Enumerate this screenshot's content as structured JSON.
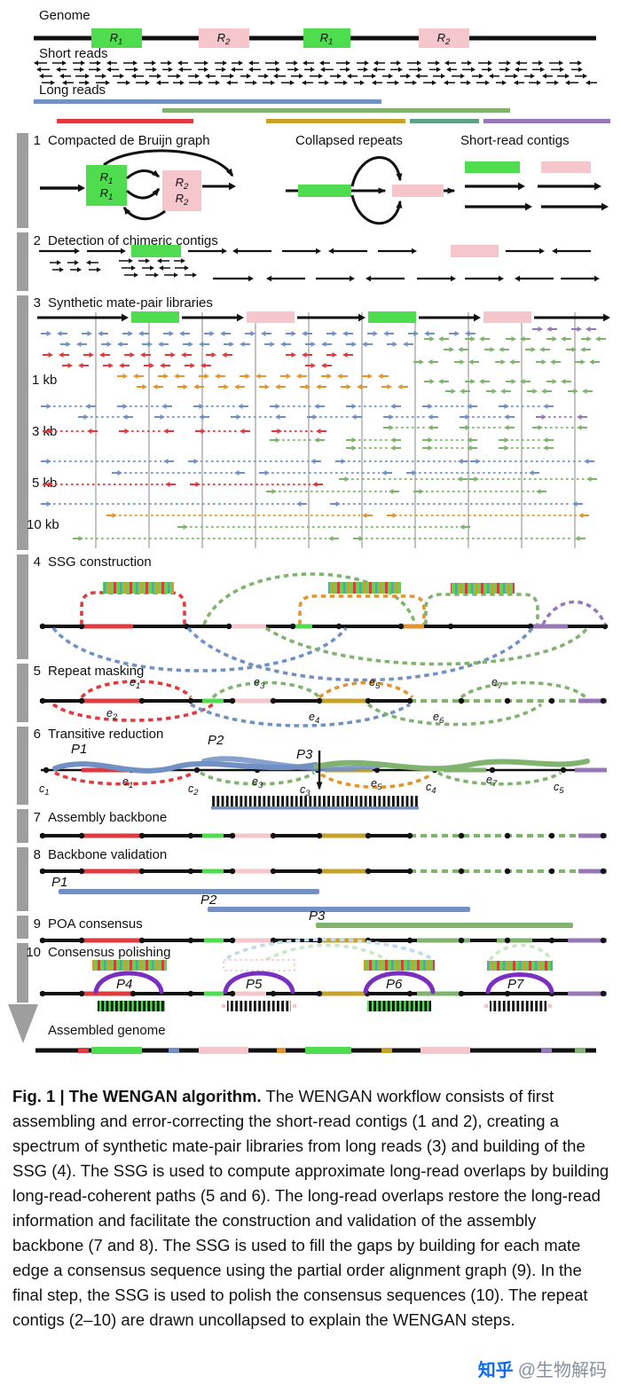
{
  "colors": {
    "repeat_green": "#4FDD4F",
    "repeat_pink": "#F5C6CB",
    "read_blue": "#7191C5",
    "read_red": "#E0393E",
    "read_orange": "#E2952F",
    "read_olive": "#C7A22A",
    "read_green": "#7FB36E",
    "read_purple": "#9678B6",
    "consensus_purple": "#7B2FC0",
    "step_bar_gray": "#9E9E9E",
    "zhihu_blue": "#0A6CF5"
  },
  "header": {
    "genome": "Genome",
    "short_reads": "Short reads",
    "long_reads": "Long reads",
    "r_base": "R",
    "r1_sub": "1",
    "r2_sub": "2"
  },
  "steps": {
    "s1": {
      "num": "1",
      "title_a": "Compacted de Bruijn graph",
      "title_b": "Collapsed repeats",
      "title_c": "Short-read contigs"
    },
    "s2": {
      "num": "2",
      "title": "Detection of chimeric contigs"
    },
    "s3": {
      "num": "3",
      "title": "Synthetic mate-pair libraries",
      "lib1": "1 kb",
      "lib2": "3 kb",
      "lib3": "5 kb",
      "lib4": "10 kb"
    },
    "s4": {
      "num": "4",
      "title": "SSG construction"
    },
    "s5": {
      "num": "5",
      "title": "Repeat masking",
      "e_base": "e",
      "e_subs": [
        "1",
        "2",
        "3",
        "4",
        "5",
        "6",
        "7"
      ]
    },
    "s6": {
      "num": "6",
      "title": "Transitive reduction",
      "p1": "P1",
      "p2": "P2",
      "p3": "P3",
      "c_base": "c",
      "c_subs": [
        "1",
        "2",
        "3",
        "4",
        "5"
      ],
      "e_base": "e",
      "e_subs": [
        "1",
        "3",
        "5",
        "7"
      ]
    },
    "s7": {
      "num": "7",
      "title": "Assembly backbone"
    },
    "s8": {
      "num": "8",
      "title": "Backbone validation",
      "p1": "P1",
      "p2": "P2",
      "p3": "P3"
    },
    "s9": {
      "num": "9",
      "title": "POA consensus"
    },
    "s10": {
      "num": "10",
      "title": "Consensus polishing",
      "p4": "P4",
      "p5": "P5",
      "p6": "P6",
      "p7": "P7"
    },
    "assembled": "Assembled genome"
  },
  "caption": {
    "bold": "Fig. 1 | The WENGAN algorithm.",
    "body": " The WENGAN workflow consists of first assembling and error-correcting the short-read contigs (1 and 2), creating a spectrum of synthetic mate-pair libraries from long reads (3) and building of the SSG (4). The SSG is used to compute approximate long-read overlaps by building long-read-coherent paths (5 and 6). The long-read overlaps restore the long-read information and facilitate the construction and validation of the assembly backbone (7 and 8). The SSG is used to fill the gaps by building for each mate edge a consensus sequence using the partial order alignment graph (9). In the final step, the SSG is used to polish the consensus sequences (10). The repeat contigs (2–10) are drawn uncollapsed to explain the WENGAN steps."
  },
  "watermark": {
    "brand": "知乎",
    "handle": "@生物解码"
  }
}
